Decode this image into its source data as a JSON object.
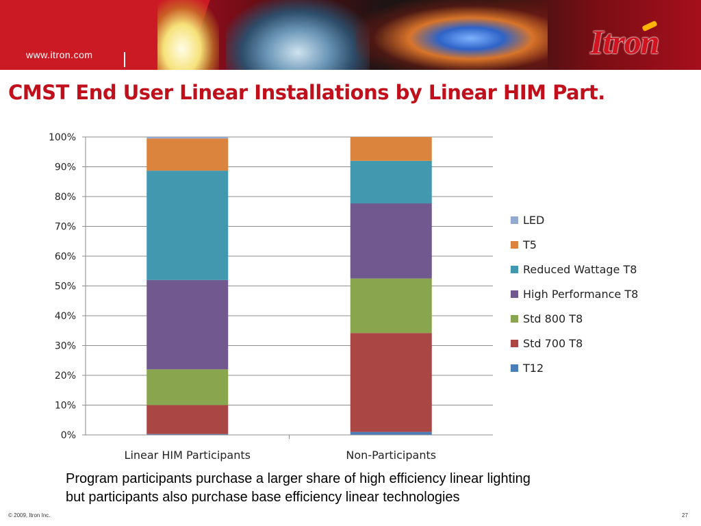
{
  "header": {
    "url": "www.itron.com",
    "logo": "Itron"
  },
  "title": "CMST End User Linear Installations by Linear HIM Part.",
  "chart_data": {
    "type": "bar",
    "stacked": true,
    "title": "",
    "xlabel": "",
    "ylabel": "",
    "ylim": [
      0,
      100
    ],
    "yticks": [
      "0%",
      "10%",
      "20%",
      "30%",
      "40%",
      "50%",
      "60%",
      "70%",
      "80%",
      "90%",
      "100%"
    ],
    "grid": true,
    "legend_position": "right",
    "categories": [
      "Linear HIM Participants",
      "Non-Participants"
    ],
    "series": [
      {
        "name": "T12",
        "color": "#4a7ebb",
        "values": [
          0.3,
          1
        ]
      },
      {
        "name": "Std 700 T8",
        "color": "#aa4643",
        "values": [
          9.7,
          33.2
        ]
      },
      {
        "name": "Std 800 T8",
        "color": "#89a54e",
        "values": [
          12,
          18.3
        ]
      },
      {
        "name": "High Performance T8",
        "color": "#71588f",
        "values": [
          30,
          25.2
        ]
      },
      {
        "name": "Reduced Wattage T8",
        "color": "#4198af",
        "values": [
          36.7,
          14.3
        ]
      },
      {
        "name": "T5",
        "color": "#db843d",
        "values": [
          10.8,
          8
        ]
      },
      {
        "name": "LED",
        "color": "#93a9cf",
        "values": [
          0.5,
          0
        ]
      }
    ]
  },
  "caption": {
    "line1": "Program participants purchase a larger share of high efficiency linear lighting",
    "line2": "but participants also purchase base efficiency linear technologies"
  },
  "footer": {
    "copyright": "© 2009, Itron Inc.",
    "page_number": "27"
  }
}
